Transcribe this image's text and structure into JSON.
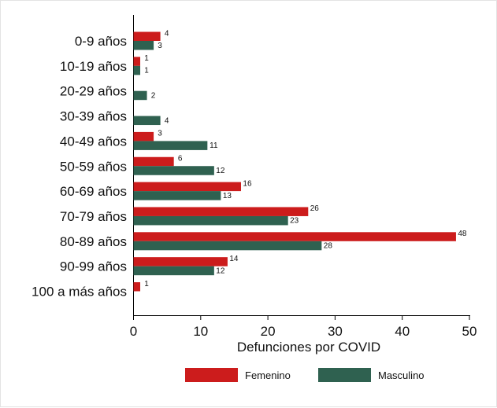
{
  "chart_data": {
    "type": "bar",
    "orientation": "horizontal",
    "categories": [
      "0-9 años",
      "10-19 años",
      "20-29 años",
      "30-39 años",
      "40-49 años",
      "50-59 años",
      "60-69 años",
      "70-79 años",
      "80-89 años",
      "90-99 años",
      "100 a más años"
    ],
    "series": [
      {
        "name": "Femenino",
        "color": "#cc1c1c",
        "values": [
          4,
          1,
          null,
          null,
          3,
          6,
          16,
          26,
          48,
          14,
          1
        ]
      },
      {
        "name": "Masculino",
        "color": "#2f6150",
        "values": [
          3,
          1,
          2,
          4,
          11,
          12,
          13,
          23,
          28,
          12,
          null
        ]
      }
    ],
    "xlabel": "Defunciones por COVID",
    "xlim": [
      0,
      50
    ],
    "xticks": [
      0,
      10,
      20,
      30,
      40,
      50
    ],
    "grid": false,
    "legend_position": "bottom"
  }
}
